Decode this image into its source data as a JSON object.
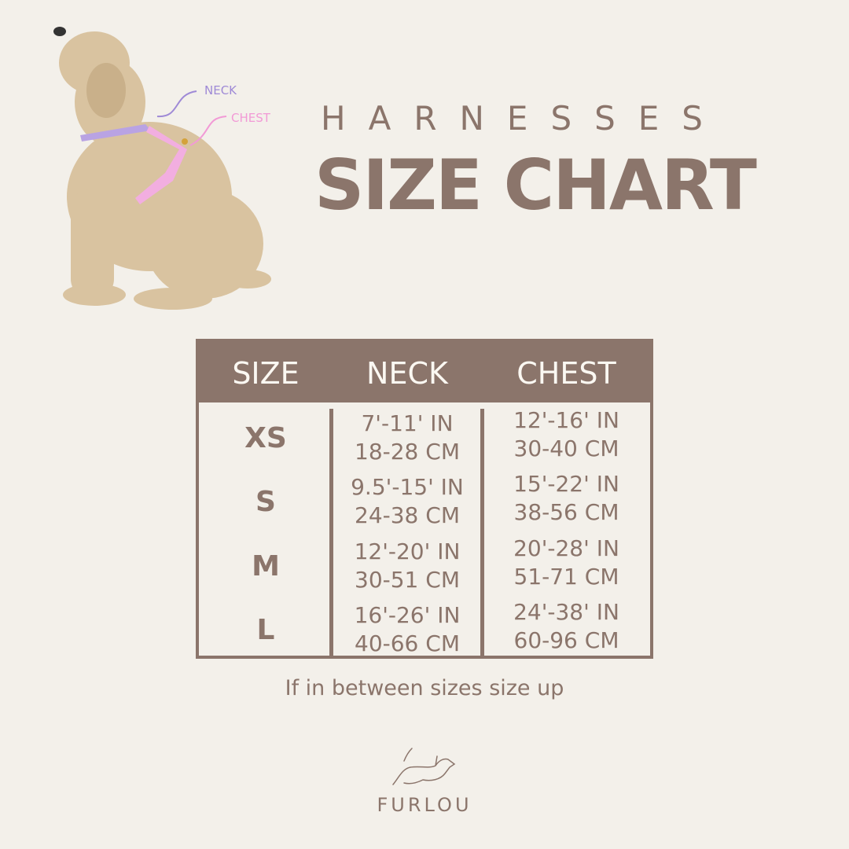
{
  "header": {
    "subtitle": "HARNESSES",
    "title": "SIZE CHART"
  },
  "illustration": {
    "neck_label": "NECK",
    "chest_label": "CHEST",
    "neck_color": "#9f8ad6",
    "chest_color": "#f29ad6"
  },
  "table": {
    "headers": [
      "SIZE",
      "NECK",
      "CHEST"
    ],
    "rows": [
      {
        "size": "XS",
        "neck_in": "7'-11' IN",
        "neck_cm": "18-28 CM",
        "chest_in": "12'-16' IN",
        "chest_cm": "30-40 CM"
      },
      {
        "size": "S",
        "neck_in": "9.5'-15' IN",
        "neck_cm": "24-38 CM",
        "chest_in": "15'-22' IN",
        "chest_cm": "38-56 CM"
      },
      {
        "size": "M",
        "neck_in": "12'-20' IN",
        "neck_cm": "30-51 CM",
        "chest_in": "20'-28' IN",
        "chest_cm": "51-71 CM"
      },
      {
        "size": "L",
        "neck_in": "16'-26' IN",
        "neck_cm": "40-66 CM",
        "chest_in": "24'-38' IN",
        "chest_cm": "60-96 CM"
      }
    ]
  },
  "note": "If in between sizes size up",
  "brand": {
    "name": "FURLOU",
    "logo_icon": "running-dog-icon"
  },
  "colors": {
    "background": "#f3f0ea",
    "brand_brown": "#8b756b"
  }
}
